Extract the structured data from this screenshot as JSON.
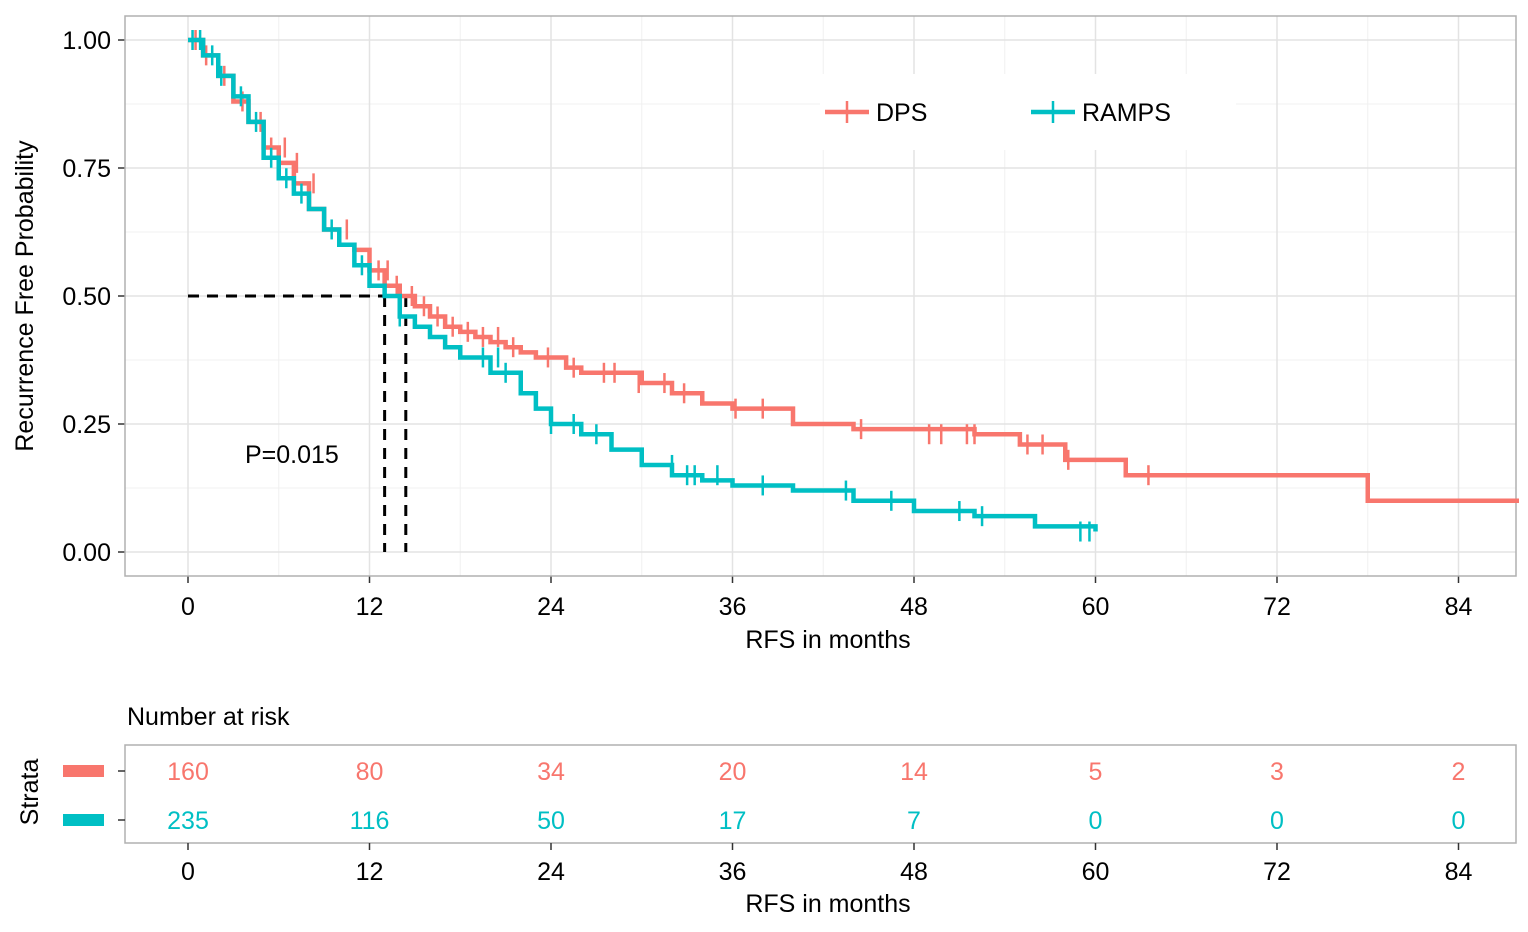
{
  "chart_data": {
    "type": "line",
    "step": true,
    "grid": true,
    "legend_position": "top-right",
    "xlabel": "RFS in months",
    "ylabel": "Recurrence Free Probability",
    "xlim": [
      0,
      88
    ],
    "ylim": [
      0,
      1
    ],
    "x_ticks": [
      "0",
      "12",
      "24",
      "36",
      "48",
      "60",
      "72",
      "84"
    ],
    "y_ticks": [
      "0.00",
      "0.25",
      "0.50",
      "0.75",
      "1.00"
    ],
    "annotation": "P=0.015",
    "median_line_y": 0.5,
    "median_x": [
      13,
      14.4
    ],
    "series": [
      {
        "name": "DPS",
        "color": "#F8766D",
        "x": [
          0,
          1,
          2,
          3,
          4,
          5,
          6,
          7,
          8,
          9,
          10,
          11,
          12,
          13,
          14,
          15,
          16,
          17,
          18,
          19,
          20,
          21,
          22,
          23,
          24,
          25,
          26,
          28,
          30,
          32,
          34,
          36,
          38,
          40,
          44,
          48,
          52,
          55,
          58,
          62,
          66,
          72,
          78,
          88
        ],
        "y": [
          1.0,
          0.97,
          0.93,
          0.88,
          0.84,
          0.79,
          0.76,
          0.72,
          0.67,
          0.63,
          0.6,
          0.59,
          0.55,
          0.52,
          0.5,
          0.48,
          0.46,
          0.44,
          0.43,
          0.42,
          0.41,
          0.4,
          0.39,
          0.38,
          0.38,
          0.36,
          0.35,
          0.35,
          0.33,
          0.31,
          0.29,
          0.28,
          0.28,
          0.25,
          0.24,
          0.24,
          0.23,
          0.21,
          0.18,
          0.15,
          0.15,
          0.15,
          0.1,
          0.1
        ],
        "censor_x": [
          0.5,
          1.2,
          2.4,
          3.6,
          4.8,
          5.5,
          6.4,
          7.2,
          8.3,
          10.5,
          12.6,
          13.2,
          13.8,
          14.8,
          15.6,
          16.5,
          17.5,
          18.5,
          19.5,
          20.5,
          21.5,
          23.8,
          25.5,
          27.5,
          28.2,
          29.8,
          31.5,
          32.8,
          36.2,
          38.0,
          44.5,
          49.0,
          49.8,
          51.5,
          52.0,
          55.5,
          56.5,
          58.2,
          63.5
        ],
        "censor_y": [
          1.0,
          0.97,
          0.93,
          0.88,
          0.84,
          0.79,
          0.79,
          0.76,
          0.72,
          0.63,
          0.55,
          0.55,
          0.52,
          0.5,
          0.48,
          0.46,
          0.44,
          0.43,
          0.42,
          0.42,
          0.4,
          0.38,
          0.36,
          0.35,
          0.35,
          0.33,
          0.33,
          0.31,
          0.28,
          0.28,
          0.24,
          0.23,
          0.23,
          0.23,
          0.23,
          0.21,
          0.21,
          0.18,
          0.15
        ]
      },
      {
        "name": "RAMPS",
        "color": "#00BFC4",
        "x": [
          0,
          1,
          2,
          3,
          4,
          5,
          6,
          7,
          8,
          9,
          10,
          11,
          12,
          13,
          14,
          15,
          16,
          17,
          18,
          20,
          22,
          23,
          24,
          26,
          28,
          30,
          32,
          34,
          36,
          40,
          44,
          48,
          52,
          56,
          60
        ],
        "y": [
          1.0,
          0.97,
          0.93,
          0.89,
          0.84,
          0.77,
          0.73,
          0.7,
          0.67,
          0.63,
          0.6,
          0.56,
          0.52,
          0.5,
          0.46,
          0.44,
          0.42,
          0.4,
          0.38,
          0.35,
          0.31,
          0.28,
          0.25,
          0.23,
          0.2,
          0.17,
          0.15,
          0.14,
          0.13,
          0.12,
          0.1,
          0.08,
          0.07,
          0.05,
          0.04
        ],
        "censor_x": [
          0.3,
          0.8,
          1.6,
          2.2,
          3.5,
          4.5,
          5.5,
          6.5,
          7.5,
          9.5,
          11.5,
          14.0,
          19.5,
          20.5,
          21.0,
          24.0,
          25.5,
          27.0,
          32.0,
          33.0,
          33.5,
          35.0,
          38.0,
          43.5,
          46.5,
          51.0,
          52.5,
          59.0,
          59.6
        ],
        "censor_y": [
          1.0,
          1.0,
          0.97,
          0.93,
          0.89,
          0.84,
          0.77,
          0.73,
          0.7,
          0.63,
          0.56,
          0.46,
          0.38,
          0.38,
          0.35,
          0.25,
          0.25,
          0.23,
          0.17,
          0.15,
          0.15,
          0.15,
          0.13,
          0.12,
          0.1,
          0.08,
          0.07,
          0.04,
          0.04
        ]
      }
    ],
    "risk_table": {
      "title": "Number at risk",
      "strata_label": "Strata",
      "xlabel": "RFS in months",
      "x_ticks": [
        "0",
        "12",
        "24",
        "36",
        "48",
        "60",
        "72",
        "84"
      ],
      "rows": [
        {
          "color": "#F8766D",
          "values": [
            "160",
            "80",
            "34",
            "20",
            "14",
            "5",
            "3",
            "2"
          ]
        },
        {
          "color": "#00BFC4",
          "values": [
            "235",
            "116",
            "50",
            "17",
            "7",
            "0",
            "0",
            "0"
          ]
        }
      ]
    }
  }
}
